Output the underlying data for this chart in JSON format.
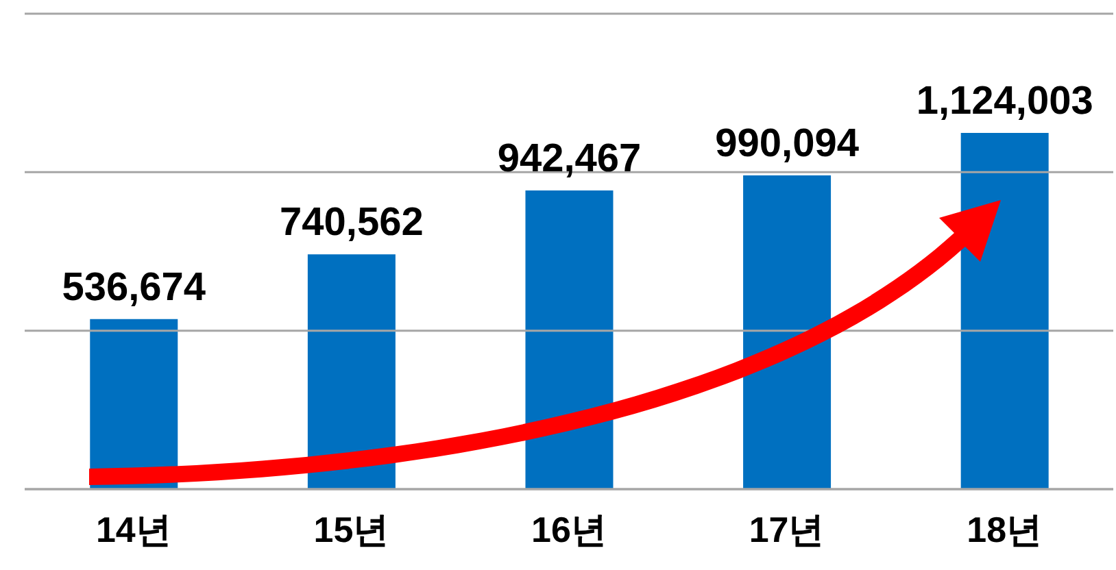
{
  "chart_data": {
    "type": "bar",
    "categories": [
      "14년",
      "15년",
      "16년",
      "17년",
      "18년"
    ],
    "values": [
      536674,
      740562,
      942467,
      990094,
      1124003
    ],
    "value_labels": [
      "536,674",
      "740,562",
      "942,467",
      "990,094",
      "1,124,003"
    ],
    "color": "#0070c0",
    "ylim": [
      0,
      1500000
    ],
    "yticks": [
      {
        "value": 0,
        "label": null
      },
      {
        "value": 500000,
        "label": null
      },
      {
        "value": 1000000,
        "label": null
      },
      {
        "value": 1500000,
        "label": null
      }
    ],
    "tick_labels": "x",
    "grid": "y"
  }
}
